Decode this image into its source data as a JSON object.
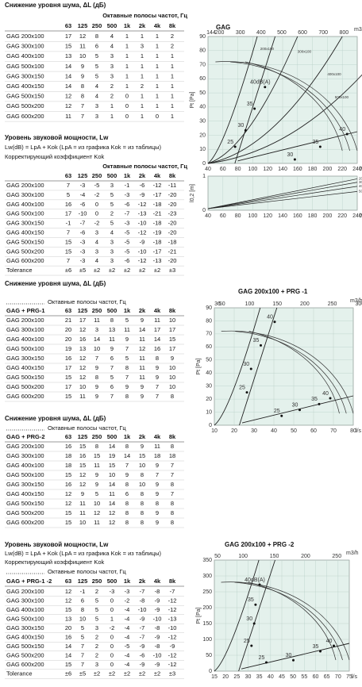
{
  "sections": [
    {
      "title": "Снижение уровня шума, ΔL (дБ)",
      "band_header": "Октавные полосы частот, Гц",
      "columns": [
        "63",
        "125",
        "250",
        "500",
        "1k",
        "2k",
        "4k",
        "8k"
      ],
      "rows": [
        [
          "GAG 200x100",
          17,
          12,
          8,
          4,
          1,
          1,
          1,
          2
        ],
        [
          "GAG 300x100",
          15,
          11,
          6,
          4,
          1,
          3,
          1,
          2
        ],
        [
          "GAG 400x100",
          13,
          10,
          5,
          3,
          1,
          1,
          1,
          1
        ],
        [
          "GAG 500x100",
          14,
          9,
          5,
          3,
          1,
          1,
          1,
          1
        ],
        [
          "GAG 300x150",
          14,
          9,
          5,
          3,
          1,
          1,
          1,
          1
        ],
        [
          "GAG 400x150",
          14,
          8,
          4,
          2,
          1,
          2,
          1,
          1
        ],
        [
          "GAG 500x150",
          12,
          8,
          4,
          2,
          0,
          1,
          1,
          1
        ],
        [
          "GAG 500x200",
          12,
          7,
          3,
          1,
          0,
          1,
          1,
          1
        ],
        [
          "GAG 600x200",
          11,
          7,
          3,
          1,
          0,
          1,
          0,
          1
        ]
      ]
    },
    {
      "title": "Уровень звуковой мощности, Lw",
      "formula": "Lw(dB) = LpA + Kok (LpA = из графика Kok = из таблицы)",
      "note": "Корректирующий коэффициент Kok",
      "band_header": "Октавные полосы частот, Гц",
      "columns": [
        "63",
        "125",
        "250",
        "500",
        "1k",
        "2k",
        "4k",
        "8k"
      ],
      "rows": [
        [
          "GAG 200x100",
          7,
          -3,
          -5,
          3,
          -1,
          -6,
          -12,
          -11
        ],
        [
          "GAG 300x100",
          5,
          -4,
          -2,
          5,
          -3,
          -9,
          -17,
          -20
        ],
        [
          "GAG 400x100",
          16,
          -6,
          0,
          5,
          -6,
          -12,
          -18,
          -20
        ],
        [
          "GAG 500x100",
          17,
          -10,
          0,
          2,
          -7,
          -13,
          -21,
          -23
        ],
        [
          "GAG 300x150",
          -1,
          -7,
          -2,
          5,
          -3,
          -10,
          -18,
          -20
        ],
        [
          "GAG 400x150",
          7,
          -6,
          3,
          4,
          -5,
          -12,
          -19,
          -20
        ],
        [
          "GAG 500x150",
          15,
          -3,
          4,
          3,
          -5,
          -9,
          -18,
          -18
        ],
        [
          "GAG 500x200",
          15,
          -3,
          3,
          3,
          -5,
          -10,
          -17,
          -21
        ],
        [
          "GAG 600x200",
          7,
          -3,
          4,
          3,
          -6,
          -12,
          -13,
          -20
        ],
        [
          "Tolerance",
          "±6",
          "±5",
          "±2",
          "±2",
          "±2",
          "±2",
          "±2",
          "±3"
        ]
      ]
    },
    {
      "title": "Снижение уровня шума, ΔL (дБ)",
      "band_header": "Октавные полосы частот, Гц",
      "corner": "GAG + PRG-1",
      "columns": [
        "63",
        "125",
        "250",
        "500",
        "1k",
        "2k",
        "4k",
        "8k"
      ],
      "rows": [
        [
          "GAG 200x100",
          21,
          17,
          11,
          8,
          5,
          9,
          11,
          10
        ],
        [
          "GAG 300x100",
          20,
          12,
          3,
          13,
          11,
          14,
          17,
          17
        ],
        [
          "GAG 400x100",
          20,
          16,
          14,
          11,
          9,
          11,
          14,
          15
        ],
        [
          "GAG 500x100",
          19,
          13,
          10,
          9,
          7,
          12,
          16,
          17
        ],
        [
          "GAG 300x150",
          16,
          12,
          7,
          6,
          5,
          11,
          8,
          9
        ],
        [
          "GAG 400x150",
          17,
          12,
          9,
          7,
          8,
          11,
          9,
          10
        ],
        [
          "GAG 500x150",
          15,
          12,
          8,
          5,
          7,
          11,
          9,
          10
        ],
        [
          "GAG 500x200",
          17,
          10,
          9,
          6,
          9,
          9,
          7,
          10
        ],
        [
          "GAG 600x200",
          15,
          11,
          9,
          7,
          8,
          9,
          7,
          8
        ]
      ]
    },
    {
      "title": "Снижение уровня шума, ΔL (дБ)",
      "band_header": "Октавные полосы частот, Гц",
      "corner": "GAG + PRG-2",
      "columns": [
        "63",
        "125",
        "250",
        "500",
        "1k",
        "2k",
        "4k",
        "8k"
      ],
      "rows": [
        [
          "GAG 200x100",
          16,
          15,
          8,
          14,
          8,
          9,
          11,
          8
        ],
        [
          "GAG 300x100",
          18,
          16,
          15,
          19,
          14,
          15,
          18,
          18
        ],
        [
          "GAG 400x100",
          18,
          15,
          11,
          15,
          7,
          10,
          9,
          7
        ],
        [
          "GAG 500x100",
          15,
          12,
          9,
          10,
          9,
          8,
          7,
          7
        ],
        [
          "GAG 300x150",
          16,
          12,
          9,
          14,
          8,
          10,
          9,
          8
        ],
        [
          "GAG 400x150",
          12,
          9,
          5,
          11,
          6,
          8,
          9,
          7
        ],
        [
          "GAG 500x150",
          12,
          11,
          10,
          14,
          8,
          8,
          8,
          8
        ],
        [
          "GAG 500x200",
          15,
          11,
          12,
          12,
          8,
          8,
          9,
          8
        ],
        [
          "GAG 600x200",
          15,
          10,
          11,
          12,
          8,
          8,
          9,
          8
        ]
      ]
    },
    {
      "title": "Уровень звуковой мощности, Lw",
      "formula": "Lw(dB) = LpA + Kok (LpA = из графика Kok = из таблицы)",
      "note": "Корректирующий коэффициент Kok",
      "band_header": "Октавные полосы частот, Гц",
      "corner": "GAG + PRG-1 -2",
      "columns": [
        "63",
        "125",
        "250",
        "500",
        "1k",
        "2k",
        "4k",
        "8k"
      ],
      "rows": [
        [
          "GAG 200x100",
          12,
          -1,
          2,
          -3,
          -3,
          -7,
          -8,
          -7
        ],
        [
          "GAG 300x100",
          12,
          6,
          5,
          0,
          -2,
          -8,
          -9,
          -12
        ],
        [
          "GAG 400x100",
          15,
          8,
          5,
          0,
          -4,
          -10,
          -9,
          -12
        ],
        [
          "GAG 500x100",
          13,
          10,
          5,
          1,
          -4,
          -9,
          -10,
          -13
        ],
        [
          "GAG 300x150",
          20,
          5,
          3,
          -2,
          -4,
          -7,
          -8,
          -10
        ],
        [
          "GAG 400x150",
          16,
          5,
          2,
          0,
          -4,
          -7,
          -9,
          -12
        ],
        [
          "GAG 500x150",
          14,
          7,
          2,
          0,
          -5,
          -9,
          -8,
          -9
        ],
        [
          "GAG 500x200",
          14,
          7,
          2,
          0,
          -4,
          -6,
          -10,
          -12
        ],
        [
          "GAG 600x200",
          15,
          7,
          3,
          0,
          -4,
          -9,
          -9,
          -12
        ],
        [
          "Tolerance",
          "±6",
          "±5",
          "±2",
          "±2",
          "±2",
          "±2",
          "±2",
          "±3"
        ]
      ]
    }
  ],
  "charts": [
    {
      "title": "GAG",
      "top_unit": "m3/h",
      "top_ticks": [
        144,
        200,
        300,
        400,
        500,
        600,
        700,
        800
      ],
      "y_label": "Pt [Pa]",
      "y_ticks": [
        90,
        80,
        70,
        60,
        50,
        40,
        30,
        20,
        10,
        0
      ],
      "x_unit": "l/s",
      "x_ticks": [
        40,
        60,
        80,
        100,
        120,
        140,
        160,
        180,
        200,
        220,
        240
      ],
      "labels": [
        "40dB(A)",
        "35",
        "30",
        "25",
        "30",
        "35",
        "40"
      ],
      "curve_labels": [
        "200x100",
        "300x100",
        "400x100",
        "500x100"
      ]
    },
    {
      "y_label": "l0,2 [m]",
      "y_ticks": [
        1,
        0
      ],
      "x_unit": "l/s",
      "x_ticks": [
        40,
        60,
        80,
        100,
        120,
        140,
        160,
        180,
        200,
        220,
        240
      ],
      "curve_labels": [
        "200x100",
        "300x100",
        "400x100",
        "500x100"
      ]
    },
    {
      "title": "GAG 200x100 + PRG -1",
      "top_unit": "m3/h",
      "top_ticks": [
        36,
        50,
        100,
        150,
        200,
        250,
        300
      ],
      "y_label": "Pt [Pa]",
      "y_ticks": [
        90,
        80,
        70,
        60,
        50,
        40,
        30,
        20,
        10,
        0
      ],
      "x_unit": "l/s",
      "x_ticks": [
        10,
        20,
        30,
        40,
        50,
        60,
        70,
        80
      ],
      "labels": [
        "40",
        "35",
        "30",
        "25",
        "25",
        "30",
        "35",
        "40"
      ]
    },
    {
      "title": "GAG 200x100 + PRG -2",
      "top_unit": "m3/h",
      "top_ticks": [
        50,
        100,
        150,
        200,
        250
      ],
      "y_label": "Pt [Pa]",
      "y_ticks": [
        350,
        300,
        250,
        200,
        150,
        100,
        50,
        0
      ],
      "x_unit": "l/s",
      "x_ticks": [
        15,
        20,
        25,
        30,
        35,
        40,
        45,
        50,
        55,
        60,
        65,
        70,
        75
      ],
      "labels": [
        "40dB(A)",
        "35",
        "30",
        "25",
        "25",
        "30",
        "35",
        "40"
      ]
    }
  ]
}
